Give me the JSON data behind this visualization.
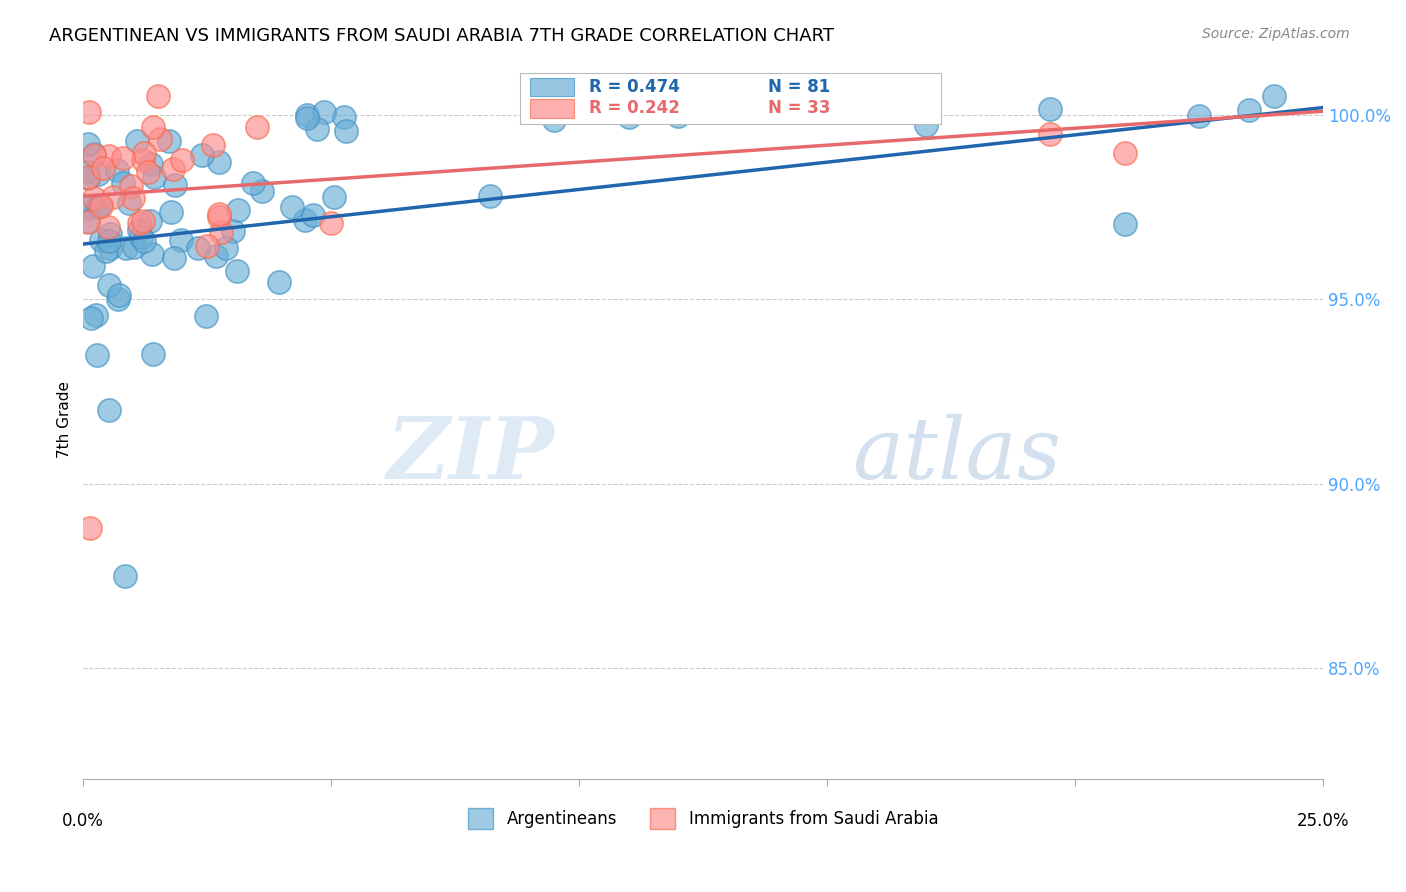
{
  "title": "ARGENTINEAN VS IMMIGRANTS FROM SAUDI ARABIA 7TH GRADE CORRELATION CHART",
  "source": "Source: ZipAtlas.com",
  "ylabel": "7th Grade",
  "y_ticks": [
    85.0,
    90.0,
    95.0,
    100.0
  ],
  "y_tick_labels": [
    "85.0%",
    "90.0%",
    "95.0%",
    "100.0%"
  ],
  "x_range": [
    0.0,
    25.0
  ],
  "y_range": [
    82.0,
    101.5
  ],
  "legend_blue_label": "Argentineans",
  "legend_pink_label": "Immigrants from Saudi Arabia",
  "r_blue": 0.474,
  "n_blue": 81,
  "r_pink": 0.242,
  "n_pink": 33,
  "blue_color": "#6baed6",
  "pink_color": "#fd8d8d",
  "trendline_blue": "#2166ac",
  "trendline_pink": "#e8696b",
  "watermark_zip_color": "#c8dff0",
  "watermark_atlas_color": "#b0c8e0"
}
